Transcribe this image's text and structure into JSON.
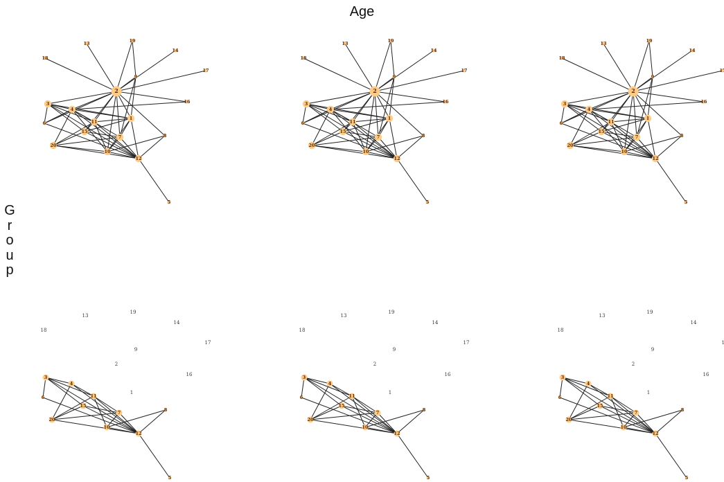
{
  "title": "Age",
  "row_label": "Group",
  "node_color": "#ffcc88",
  "edge_color": "#222222",
  "node_ids": [
    "1",
    "2",
    "3",
    "4",
    "5",
    "6",
    "7",
    "8",
    "9",
    "10",
    "11",
    "12",
    "13",
    "14",
    "15",
    "16",
    "17",
    "18",
    "19",
    "20"
  ],
  "full_network_edges": [
    [
      "2",
      "13"
    ],
    [
      "2",
      "18"
    ],
    [
      "2",
      "19"
    ],
    [
      "2",
      "14"
    ],
    [
      "2",
      "17"
    ],
    [
      "2",
      "16"
    ],
    [
      "2",
      "9"
    ],
    [
      "2",
      "3"
    ],
    [
      "2",
      "4"
    ],
    [
      "2",
      "11"
    ],
    [
      "2",
      "1"
    ],
    [
      "2",
      "15"
    ],
    [
      "2",
      "7"
    ],
    [
      "2",
      "10"
    ],
    [
      "2",
      "8"
    ],
    [
      "2",
      "6"
    ],
    [
      "9",
      "19"
    ],
    [
      "9",
      "1"
    ],
    [
      "9",
      "7"
    ],
    [
      "3",
      "4"
    ],
    [
      "3",
      "6"
    ],
    [
      "3",
      "11"
    ],
    [
      "3",
      "15"
    ],
    [
      "3",
      "1"
    ],
    [
      "3",
      "12"
    ],
    [
      "4",
      "11"
    ],
    [
      "4",
      "1"
    ],
    [
      "4",
      "20"
    ],
    [
      "4",
      "10"
    ],
    [
      "4",
      "16"
    ],
    [
      "4",
      "7"
    ],
    [
      "4",
      "12"
    ],
    [
      "6",
      "4"
    ],
    [
      "6",
      "12"
    ],
    [
      "11",
      "1"
    ],
    [
      "11",
      "15"
    ],
    [
      "11",
      "10"
    ],
    [
      "11",
      "20"
    ],
    [
      "11",
      "12"
    ],
    [
      "15",
      "1"
    ],
    [
      "15",
      "7"
    ],
    [
      "15",
      "12"
    ],
    [
      "15",
      "20"
    ],
    [
      "20",
      "7"
    ],
    [
      "20",
      "10"
    ],
    [
      "20",
      "12"
    ],
    [
      "1",
      "7"
    ],
    [
      "1",
      "10"
    ],
    [
      "1",
      "12"
    ],
    [
      "7",
      "10"
    ],
    [
      "7",
      "12"
    ],
    [
      "10",
      "12"
    ],
    [
      "10",
      "8"
    ],
    [
      "8",
      "12"
    ],
    [
      "12",
      "5"
    ]
  ],
  "group_network_edges": [
    [
      "3",
      "4"
    ],
    [
      "3",
      "11"
    ],
    [
      "3",
      "15"
    ],
    [
      "3",
      "6"
    ],
    [
      "3",
      "12"
    ],
    [
      "4",
      "11"
    ],
    [
      "4",
      "20"
    ],
    [
      "4",
      "12"
    ],
    [
      "6",
      "12"
    ],
    [
      "11",
      "20"
    ],
    [
      "11",
      "10"
    ],
    [
      "11",
      "7"
    ],
    [
      "11",
      "12"
    ],
    [
      "15",
      "20"
    ],
    [
      "15",
      "7"
    ],
    [
      "15",
      "12"
    ],
    [
      "20",
      "7"
    ],
    [
      "20",
      "12"
    ],
    [
      "7",
      "10"
    ],
    [
      "7",
      "12"
    ],
    [
      "10",
      "12"
    ],
    [
      "10",
      "8"
    ],
    [
      "8",
      "12"
    ],
    [
      "12",
      "5"
    ]
  ],
  "group_network_nodes": [
    "3",
    "4",
    "6",
    "11",
    "15",
    "20",
    "7",
    "10",
    "12",
    "8",
    "5"
  ]
}
